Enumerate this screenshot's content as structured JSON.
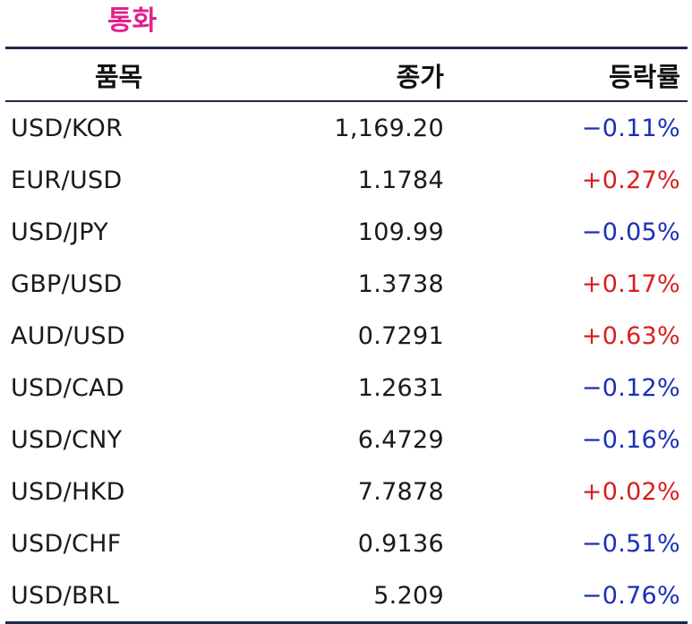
{
  "section": {
    "title": "통화",
    "title_color": "#e0218a"
  },
  "table": {
    "headers": {
      "item": "품목",
      "close": "종가",
      "change": "등락률"
    },
    "colors": {
      "up": "#d81e1e",
      "down": "#1a2fb8",
      "rule": "#1c2a4a"
    },
    "rows": [
      {
        "item": "USD/KOR",
        "close": "1,169.20",
        "change": "−0.11%",
        "direction": "down"
      },
      {
        "item": "EUR/USD",
        "close": "1.1784",
        "change": "+0.27%",
        "direction": "up"
      },
      {
        "item": "USD/JPY",
        "close": "109.99",
        "change": "−0.05%",
        "direction": "down"
      },
      {
        "item": "GBP/USD",
        "close": "1.3738",
        "change": "+0.17%",
        "direction": "up"
      },
      {
        "item": "AUD/USD",
        "close": "0.7291",
        "change": "+0.63%",
        "direction": "up"
      },
      {
        "item": "USD/CAD",
        "close": "1.2631",
        "change": "−0.12%",
        "direction": "down"
      },
      {
        "item": "USD/CNY",
        "close": "6.4729",
        "change": "−0.16%",
        "direction": "down"
      },
      {
        "item": "USD/HKD",
        "close": "7.7878",
        "change": "+0.02%",
        "direction": "up"
      },
      {
        "item": "USD/CHF",
        "close": "0.9136",
        "change": "−0.51%",
        "direction": "down"
      },
      {
        "item": "USD/BRL",
        "close": "5.209",
        "change": "−0.76%",
        "direction": "down"
      }
    ]
  }
}
